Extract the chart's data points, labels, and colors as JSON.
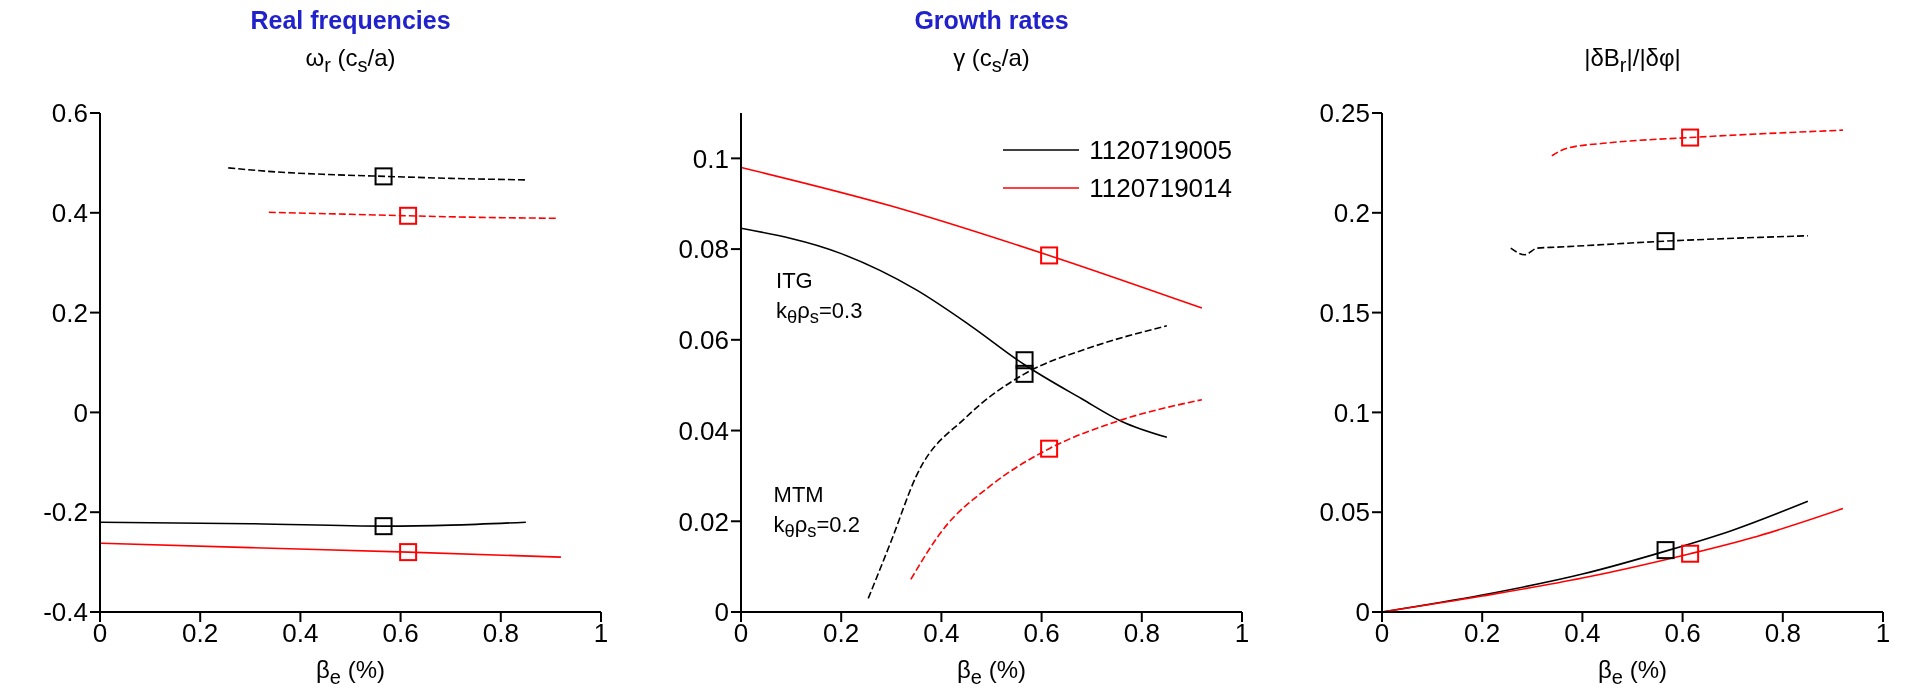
{
  "chart_data": [
    {
      "type": "line",
      "title": "Real frequencies",
      "subtitle": "ω$_{r}$ (c$_{s}$/a)",
      "xlabel": "β$_{e}$ (%)",
      "xlim": [
        0,
        1
      ],
      "xticks": [
        0,
        0.2,
        0.4,
        0.6,
        0.8,
        1
      ],
      "ylim": [
        -0.4,
        0.6
      ],
      "yticks": [
        -0.4,
        -0.2,
        0,
        0.2,
        0.4,
        0.6
      ],
      "legend": false,
      "grid": false,
      "series": [
        {
          "color": "#000000",
          "line_style": "dashed",
          "marker": "none",
          "x": [
            0.256,
            0.35,
            0.45,
            0.57,
            0.7,
            0.85
          ],
          "values": [
            0.49,
            0.482,
            0.477,
            0.473,
            0.469,
            0.466
          ]
        },
        {
          "color": "#ff0000",
          "line_style": "dashed",
          "marker": "none",
          "x": [
            0.337,
            0.5,
            0.615,
            0.75,
            0.913
          ],
          "values": [
            0.401,
            0.397,
            0.394,
            0.391,
            0.389
          ]
        },
        {
          "color": "#000000",
          "line_style": "solid",
          "marker": "none",
          "x": [
            0,
            0.3,
            0.57,
            0.7,
            0.85
          ],
          "values": [
            -0.22,
            -0.223,
            -0.228,
            -0.226,
            -0.22
          ]
        },
        {
          "color": "#ff0000",
          "line_style": "solid",
          "marker": "none",
          "x": [
            0,
            0.3,
            0.615,
            0.92
          ],
          "values": [
            -0.262,
            -0.271,
            -0.28,
            -0.29
          ]
        },
        {
          "type": "scatter",
          "color": "#000000",
          "marker": "square",
          "x": [
            0.566,
            0.566
          ],
          "values": [
            0.473,
            -0.228
          ]
        },
        {
          "type": "scatter",
          "color": "#ff0000",
          "marker": "square",
          "x": [
            0.615,
            0.615
          ],
          "values": [
            0.394,
            -0.28
          ]
        }
      ]
    },
    {
      "type": "line",
      "title": "Growth rates",
      "subtitle": "γ (c$_{s}$/a)",
      "xlabel": "β$_{e}$ (%)",
      "xlim": [
        0,
        1
      ],
      "xticks": [
        0,
        0.2,
        0.4,
        0.6,
        0.8,
        1
      ],
      "ylim": [
        0,
        0.11
      ],
      "yticks": [
        0,
        0.02,
        0.04,
        0.06,
        0.08,
        0.1
      ],
      "legend": "top right",
      "grid": false,
      "annotations": [
        "ITG",
        "k$_{θ}$ρ$_{s}$=0.3",
        "MTM",
        "k$_{θ}$ρ$_{s}$=0.2"
      ],
      "series": [
        {
          "name": "1120719005",
          "color": "#000000",
          "line_style": "solid",
          "marker": "none",
          "x": [
            0,
            0.2,
            0.35,
            0.457,
            0.566,
            0.68,
            0.76,
            0.85
          ],
          "values": [
            0.0846,
            0.079,
            0.071,
            0.0632,
            0.0545,
            0.047,
            0.042,
            0.0385
          ]
        },
        {
          "name": "1120719014",
          "color": "#ff0000",
          "line_style": "solid",
          "marker": "none",
          "x": [
            0,
            0.3,
            0.615,
            0.92
          ],
          "values": [
            0.098,
            0.0895,
            0.0786,
            0.067
          ]
        },
        {
          "color": "#000000",
          "line_style": "dashed",
          "marker": "none",
          "x": [
            0.254,
            0.3,
            0.35,
            0.45,
            0.566,
            0.7,
            0.85
          ],
          "values": [
            0.003,
            0.0157,
            0.03,
            0.043,
            0.0525,
            0.0584,
            0.0631
          ]
        },
        {
          "color": "#ff0000",
          "line_style": "dashed",
          "marker": "none",
          "x": [
            0.339,
            0.4,
            0.5,
            0.615,
            0.75,
            0.92
          ],
          "values": [
            0.0072,
            0.0177,
            0.028,
            0.036,
            0.042,
            0.0468
          ]
        },
        {
          "type": "scatter",
          "color": "#000000",
          "marker": "square",
          "x": [
            0.566,
            0.566
          ],
          "values": [
            0.0555,
            0.0525
          ]
        },
        {
          "type": "scatter",
          "color": "#ff0000",
          "marker": "square",
          "x": [
            0.615,
            0.615
          ],
          "values": [
            0.0786,
            0.036
          ]
        }
      ]
    },
    {
      "type": "line",
      "subtitle": "|δB$_{r}$|/|δφ|",
      "xlabel": "β$_{e}$ (%)",
      "xlim": [
        0,
        1
      ],
      "xticks": [
        0,
        0.2,
        0.4,
        0.6,
        0.8,
        1
      ],
      "ylim": [
        0,
        0.25
      ],
      "yticks": [
        0,
        0.05,
        0.1,
        0.15,
        0.2,
        0.25
      ],
      "legend": false,
      "grid": false,
      "series": [
        {
          "color": "#ff0000",
          "line_style": "dashed",
          "marker": "none",
          "x": [
            0.339,
            0.37,
            0.45,
            0.615,
            0.92
          ],
          "values": [
            0.2286,
            0.2324,
            0.235,
            0.2377,
            0.2414
          ]
        },
        {
          "color": "#000000",
          "line_style": "dashed",
          "marker": "none",
          "x": [
            0.257,
            0.285,
            0.31,
            0.35,
            0.566,
            0.85
          ],
          "values": [
            0.1823,
            0.179,
            0.1823,
            0.1828,
            0.1858,
            0.1885
          ]
        },
        {
          "color": "#000000",
          "line_style": "solid",
          "marker": "none",
          "x": [
            0,
            0.2,
            0.4,
            0.566,
            0.7,
            0.85
          ],
          "values": [
            0,
            0.0085,
            0.019,
            0.0305,
            0.041,
            0.0555
          ]
        },
        {
          "color": "#ff0000",
          "line_style": "solid",
          "marker": "none",
          "x": [
            0,
            0.2,
            0.4,
            0.615,
            0.75,
            0.92
          ],
          "values": [
            0,
            0.008,
            0.017,
            0.0292,
            0.038,
            0.0518
          ]
        },
        {
          "type": "scatter",
          "color": "#000000",
          "marker": "square",
          "x": [
            0.566,
            0.566
          ],
          "values": [
            0.031,
            0.1858
          ]
        },
        {
          "type": "scatter",
          "color": "#ff0000",
          "marker": "square",
          "x": [
            0.615,
            0.615
          ],
          "values": [
            0.0292,
            0.2377
          ]
        }
      ]
    }
  ]
}
